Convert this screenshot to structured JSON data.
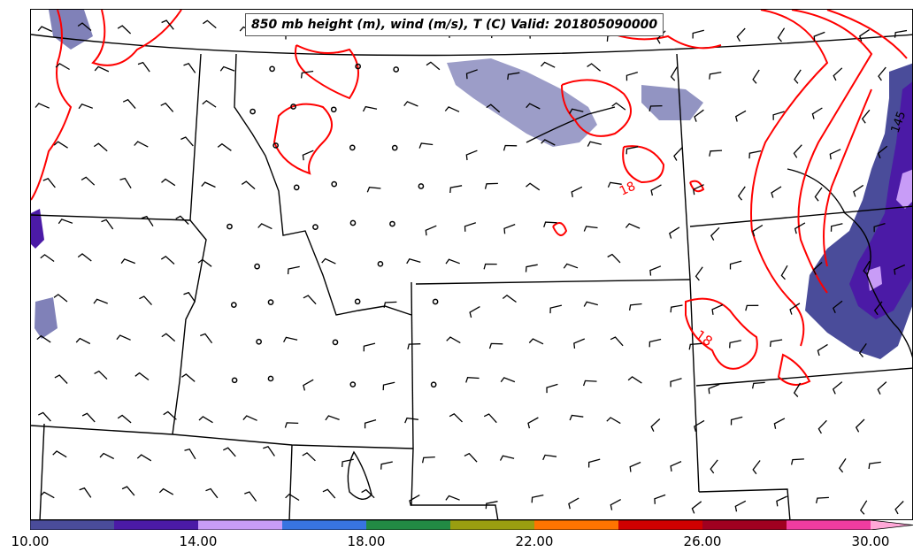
{
  "title": "850 mb height (m), wind (m/s), T (C) Valid: 201805090000",
  "contour_labels": [
    "18",
    "18",
    "145"
  ],
  "colorbar": {
    "colors": [
      "#4a4c9a",
      "#4b1aa6",
      "#c89cf7",
      "#3874e0",
      "#228a44",
      "#9a9e10",
      "#ff7400",
      "#cf0000",
      "#a00020",
      "#f03ca0",
      "#ffa8d8"
    ],
    "tick_labels": [
      "10.00",
      "14.00",
      "18.00",
      "22.00",
      "26.00",
      "30.00"
    ]
  },
  "colors": {
    "temperature_contour": "#ff0000",
    "boundaries": "#000000",
    "precip_light": "#4a4c9a",
    "precip_mid": "#4b1aa6",
    "precip_high": "#c89cf7"
  }
}
